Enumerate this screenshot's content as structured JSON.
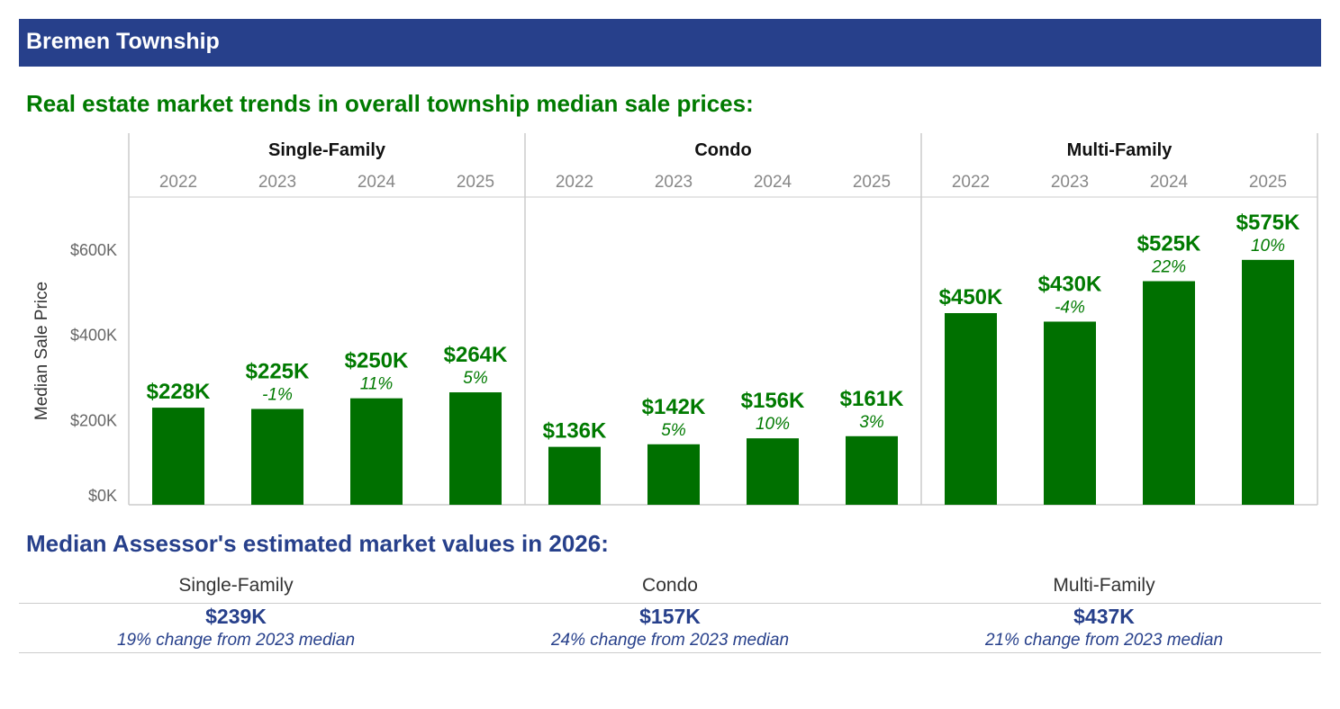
{
  "banner": {
    "title": "Bremen Township"
  },
  "trends_heading": "Real estate market trends in overall township median sale prices:",
  "assessor_heading": "Median Assessor's estimated market values in 2026:",
  "colors": {
    "banner": "#27408b",
    "bar": "#007000",
    "green_text": "#007a00",
    "blue_text": "#27408b",
    "grid": "#cccccc",
    "axis_text": "#666666"
  },
  "chart_data": {
    "type": "bar",
    "ylabel": "Median Sale Price",
    "ylim": [
      0,
      720000
    ],
    "yticks": [
      0,
      200000,
      400000,
      600000
    ],
    "ytick_labels": [
      "$0K",
      "$200K",
      "$400K",
      "$600K"
    ],
    "panels": [
      {
        "name": "Single-Family",
        "categories": [
          "2022",
          "2023",
          "2024",
          "2025"
        ],
        "values": [
          228000,
          225000,
          250000,
          264000
        ],
        "value_labels": [
          "$228K",
          "$225K",
          "$250K",
          "$264K"
        ],
        "change_labels": [
          "",
          "-1%",
          "11%",
          "5%"
        ]
      },
      {
        "name": "Condo",
        "categories": [
          "2022",
          "2023",
          "2024",
          "2025"
        ],
        "values": [
          136000,
          142000,
          156000,
          161000
        ],
        "value_labels": [
          "$136K",
          "$142K",
          "$156K",
          "$161K"
        ],
        "change_labels": [
          "",
          "5%",
          "10%",
          "3%"
        ]
      },
      {
        "name": "Multi-Family",
        "categories": [
          "2022",
          "2023",
          "2024",
          "2025"
        ],
        "values": [
          450000,
          430000,
          525000,
          575000
        ],
        "value_labels": [
          "$450K",
          "$430K",
          "$525K",
          "$575K"
        ],
        "change_labels": [
          "",
          "-4%",
          "22%",
          "10%"
        ]
      }
    ]
  },
  "assessor": [
    {
      "label": "Single-Family",
      "value": "$239K",
      "note": "19% change from 2023 median"
    },
    {
      "label": "Condo",
      "value": "$157K",
      "note": "24% change from 2023 median"
    },
    {
      "label": "Multi-Family",
      "value": "$437K",
      "note": "21% change from 2023 median"
    }
  ]
}
